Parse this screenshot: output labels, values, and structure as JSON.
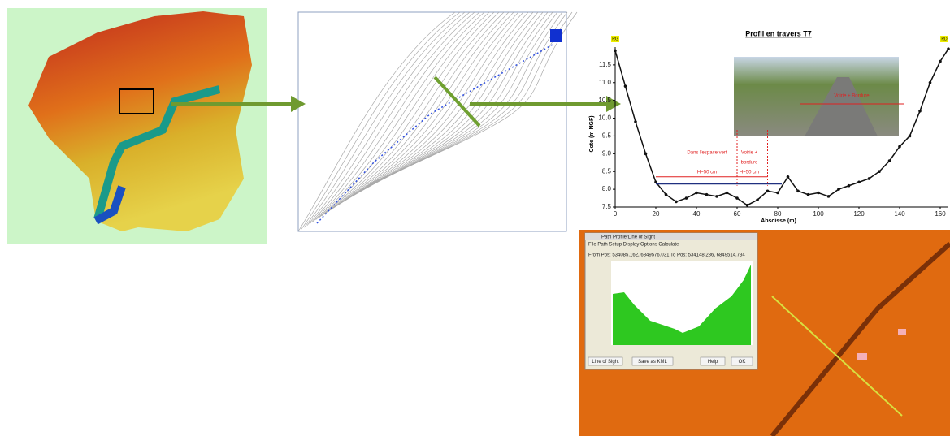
{
  "chart_data": {
    "type": "line",
    "title": "Profil en travers T7",
    "xlabel": "Abscisse (m)",
    "ylabel": "Cote (m NGF)",
    "x": [
      0,
      5,
      10,
      15,
      20,
      25,
      30,
      35,
      40,
      45,
      50,
      55,
      60,
      65,
      70,
      75,
      80,
      85,
      90,
      95,
      100,
      105,
      110,
      115,
      120,
      125,
      130,
      135,
      140,
      145,
      150,
      155,
      160,
      164
    ],
    "values": [
      11.9,
      10.9,
      9.9,
      9.0,
      8.2,
      7.85,
      7.65,
      7.75,
      7.9,
      7.85,
      7.8,
      7.9,
      7.75,
      7.55,
      7.7,
      7.95,
      7.9,
      8.35,
      7.95,
      7.85,
      7.9,
      7.8,
      8.0,
      8.1,
      8.2,
      8.3,
      8.5,
      8.8,
      9.2,
      9.5,
      10.2,
      11.0,
      11.6,
      11.95
    ],
    "color": "#111111",
    "xlim": [
      0,
      164
    ],
    "ylim": [
      7.5,
      12
    ],
    "xticks": [
      0,
      20,
      40,
      60,
      80,
      100,
      120,
      140,
      160
    ],
    "yticks": [
      7.5,
      {
        "value": 8,
        "label": "8.0"
      },
      8.5,
      {
        "value": 9,
        "label": "9.0"
      },
      9.5,
      {
        "value": 10,
        "label": "10.0"
      },
      10.5,
      {
        "value": 11,
        "label": "11.0"
      },
      11.5
    ],
    "annotations": [
      "RG",
      "RD",
      "Dans l'espace vert",
      "H~50 cm",
      "Voirie +",
      "bordure",
      "H~50 cm",
      "Voirie + Bordure"
    ]
  },
  "dialog": {
    "title": "Path Profile/Line of Sight",
    "menu": "File   Path Setup   Display Options   Calculate",
    "position": "From Pos: 534085.162, 6849576.031 To Pos: 534148.286, 6849514.734",
    "buttons": [
      "Line of Sight",
      "Save as KML",
      "Help",
      "OK"
    ]
  }
}
